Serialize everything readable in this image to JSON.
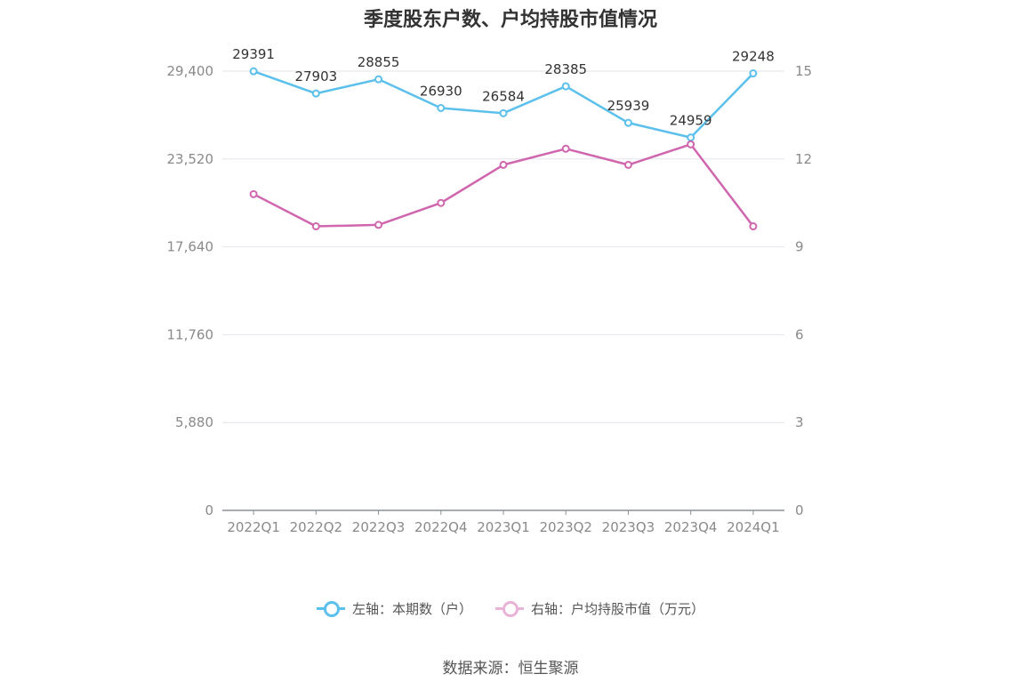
{
  "chart_data": {
    "type": "line",
    "title": "季度股东户数、户均持股市值情况",
    "categories": [
      "2022Q1",
      "2022Q2",
      "2022Q3",
      "2022Q4",
      "2023Q1",
      "2023Q2",
      "2023Q3",
      "2023Q4",
      "2024Q1"
    ],
    "y_left": {
      "ticks": [
        0,
        5880,
        11760,
        17640,
        23520,
        29400
      ],
      "tick_labels": [
        "0",
        "5,880",
        "11,760",
        "17,640",
        "23,520",
        "29,400"
      ],
      "range": [
        0,
        29400
      ]
    },
    "y_right": {
      "ticks": [
        0,
        3,
        6,
        9,
        12,
        15
      ],
      "tick_labels": [
        "0",
        "3",
        "6",
        "9",
        "12",
        "15"
      ],
      "range": [
        0,
        15
      ]
    },
    "grid": true,
    "legend_position": "bottom",
    "series": [
      {
        "name": "左轴：本期数（户）",
        "axis": "left",
        "color": "#5bc0eb",
        "values": [
          29391,
          27903,
          28855,
          26930,
          26584,
          28385,
          25939,
          24959,
          29248
        ],
        "data_labels": [
          "29391",
          "27903",
          "28855",
          "26930",
          "26584",
          "28385",
          "25939",
          "24959",
          "29248"
        ]
      },
      {
        "name": "右轴：户均持股市值（万元）",
        "axis": "right",
        "color": "#d066ad",
        "legend_color": "#e8b3d6",
        "values": [
          10.8,
          9.7,
          9.75,
          10.5,
          11.8,
          12.35,
          11.8,
          12.5,
          9.7
        ]
      }
    ]
  },
  "source": "数据来源：恒生聚源"
}
